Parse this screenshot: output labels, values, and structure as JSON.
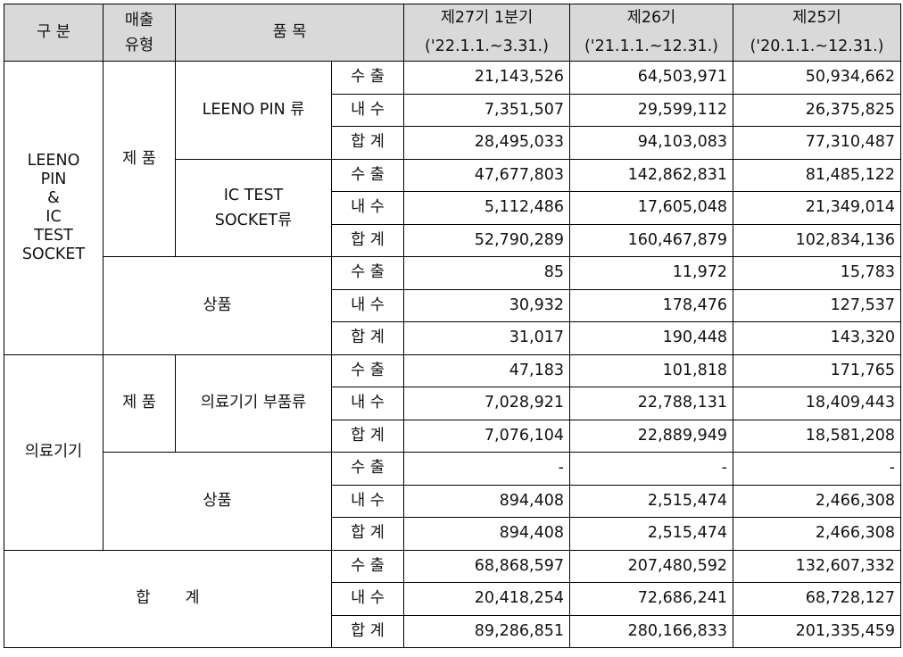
{
  "header": {
    "category": "구 분",
    "sales_type": "매출\n유형",
    "item": "품 목",
    "period_1_title": "제27기 1분기",
    "period_1_range": "('22.1.1.~3.31.)",
    "period_2_title": "제26기",
    "period_2_range": "('21.1.1.~12.31.)",
    "period_3_title": "제25기",
    "period_3_range": "('20.1.1.~12.31.)"
  },
  "groups": {
    "leeno": "LEENO\nPIN\n&\nIC\nTEST\nSOCKET",
    "medical": "의료기기",
    "total": "합       계"
  },
  "types": {
    "product_1": "제 품",
    "merch_1": "상품",
    "product_2": "제 품",
    "merch_2": "상품"
  },
  "items": {
    "leeno_pin": "LEENO PIN 류",
    "ic_socket": "IC TEST\nSOCKET류",
    "medical_parts": "의료기기 부품류"
  },
  "rows": [
    {
      "kind": "수 출",
      "v1": "21,143,526",
      "v2": "64,503,971",
      "v3": "50,934,662"
    },
    {
      "kind": "내 수",
      "v1": "7,351,507",
      "v2": "29,599,112",
      "v3": "26,375,825"
    },
    {
      "kind": "합 계",
      "v1": "28,495,033",
      "v2": "94,103,083",
      "v3": "77,310,487"
    },
    {
      "kind": "수 출",
      "v1": "47,677,803",
      "v2": "142,862,831",
      "v3": "81,485,122"
    },
    {
      "kind": "내 수",
      "v1": "5,112,486",
      "v2": "17,605,048",
      "v3": "21,349,014"
    },
    {
      "kind": "합 계",
      "v1": "52,790,289",
      "v2": "160,467,879",
      "v3": "102,834,136"
    },
    {
      "kind": "수 출",
      "v1": "85",
      "v2": "11,972",
      "v3": "15,783"
    },
    {
      "kind": "내 수",
      "v1": "30,932",
      "v2": "178,476",
      "v3": "127,537"
    },
    {
      "kind": "합 계",
      "v1": "31,017",
      "v2": "190,448",
      "v3": "143,320"
    },
    {
      "kind": "수 출",
      "v1": "47,183",
      "v2": "101,818",
      "v3": "171,765"
    },
    {
      "kind": "내 수",
      "v1": "7,028,921",
      "v2": "22,788,131",
      "v3": "18,409,443"
    },
    {
      "kind": "합 계",
      "v1": "7,076,104",
      "v2": "22,889,949",
      "v3": "18,581,208"
    },
    {
      "kind": "수 출",
      "v1": "-",
      "v2": "-",
      "v3": "-"
    },
    {
      "kind": "내 수",
      "v1": "894,408",
      "v2": "2,515,474",
      "v3": "2,466,308"
    },
    {
      "kind": "합 계",
      "v1": "894,408",
      "v2": "2,515,474",
      "v3": "2,466,308"
    },
    {
      "kind": "수 출",
      "v1": "68,868,597",
      "v2": "207,480,592",
      "v3": "132,607,332"
    },
    {
      "kind": "내 수",
      "v1": "20,418,254",
      "v2": "72,686,241",
      "v3": "68,728,127"
    },
    {
      "kind": "합 계",
      "v1": "89,286,851",
      "v2": "280,166,833",
      "v3": "201,335,459"
    }
  ]
}
